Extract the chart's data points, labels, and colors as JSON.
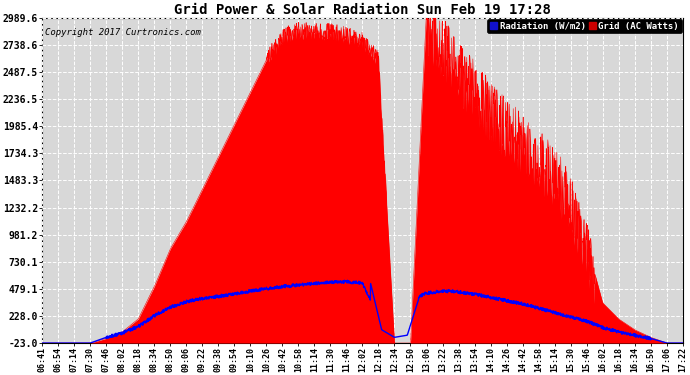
{
  "title": "Grid Power & Solar Radiation Sun Feb 19 17:28",
  "copyright": "Copyright 2017 Curtronics.com",
  "yticks": [
    -23.0,
    228.0,
    479.1,
    730.1,
    981.2,
    1232.2,
    1483.3,
    1734.3,
    1985.4,
    2236.5,
    2487.5,
    2738.6,
    2989.6
  ],
  "ymin": -23.0,
  "ymax": 2989.6,
  "bg_color": "#ffffff",
  "plot_bg_color": "#d8d8d8",
  "grid_color": "#ffffff",
  "red_fill_color": "#ff0000",
  "blue_line_color": "#0000ff",
  "title_color": "#000000",
  "xtick_labels": [
    "06:41",
    "06:54",
    "07:14",
    "07:30",
    "07:46",
    "08:02",
    "08:18",
    "08:34",
    "08:50",
    "09:06",
    "09:22",
    "09:38",
    "09:54",
    "10:10",
    "10:26",
    "10:42",
    "10:58",
    "11:14",
    "11:30",
    "11:46",
    "12:02",
    "12:18",
    "12:34",
    "12:50",
    "13:06",
    "13:22",
    "13:38",
    "13:54",
    "14:10",
    "14:26",
    "14:42",
    "14:58",
    "15:14",
    "15:30",
    "15:46",
    "16:02",
    "16:18",
    "16:34",
    "16:50",
    "17:06",
    "17:22"
  ],
  "grid_base": [
    -23,
    -23,
    -23,
    -23,
    20,
    80,
    200,
    500,
    850,
    1100,
    1400,
    1700,
    2000,
    2300,
    2600,
    2820,
    2870,
    2870,
    2860,
    2830,
    2780,
    2600,
    -23,
    -23,
    3050,
    2800,
    2600,
    2400,
    2200,
    2050,
    1900,
    1750,
    1600,
    1350,
    900,
    350,
    200,
    100,
    30,
    -23,
    -23
  ],
  "radiation_base": [
    -23,
    -23,
    -23,
    -23,
    30,
    70,
    130,
    230,
    310,
    360,
    390,
    410,
    430,
    460,
    480,
    500,
    515,
    530,
    540,
    545,
    535,
    200,
    50,
    380,
    440,
    460,
    450,
    430,
    400,
    370,
    340,
    300,
    260,
    220,
    180,
    120,
    80,
    50,
    20,
    -23,
    -23
  ]
}
